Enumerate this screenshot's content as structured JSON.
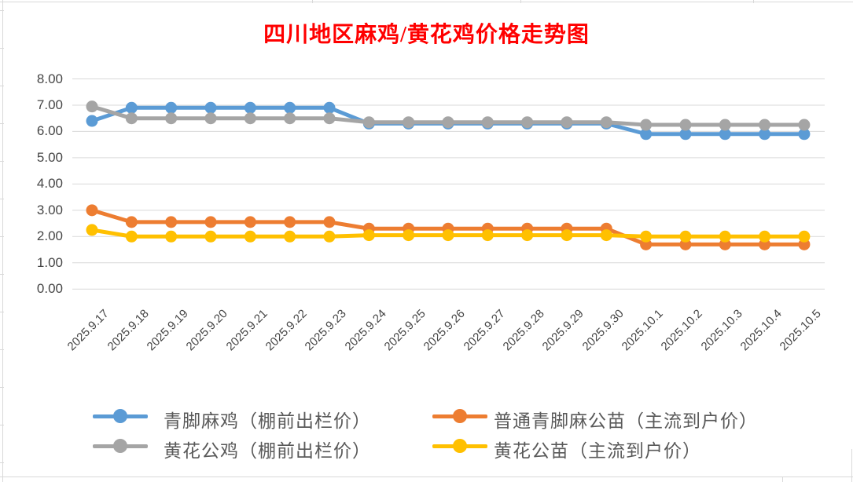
{
  "title": {
    "text": "四川地区麻鸡/黄花鸡价格走势图",
    "color": "#FF0000"
  },
  "chart_data": {
    "type": "line",
    "marker": "circle",
    "grid": true,
    "legend_position": "bottom",
    "ylim": [
      0,
      8
    ],
    "ytick_step": 1,
    "ytick_labels": [
      "0.00",
      "1.00",
      "2.00",
      "3.00",
      "4.00",
      "5.00",
      "6.00",
      "7.00",
      "8.00"
    ],
    "categories": [
      "2025.9.17",
      "2025.9.18",
      "2025.9.19",
      "2025.9.20",
      "2025.9.21",
      "2025.9.22",
      "2025.9.23",
      "2025.9.24",
      "2025.9.25",
      "2025.9.26",
      "2025.9.27",
      "2025.9.28",
      "2025.9.29",
      "2025.9.30",
      "2025.10.1",
      "2025.10.2",
      "2025.10.3",
      "2025.10.4",
      "2025.10.5"
    ],
    "series": [
      {
        "name": "青脚麻鸡（棚前出栏价）",
        "color": "#5B9BD5",
        "values": [
          6.4,
          6.9,
          6.9,
          6.9,
          6.9,
          6.9,
          6.9,
          6.3,
          6.3,
          6.3,
          6.3,
          6.3,
          6.3,
          6.3,
          5.9,
          5.9,
          5.9,
          5.9,
          5.9
        ]
      },
      {
        "name": "普通青脚麻公苗（主流到户价）",
        "color": "#ED7D31",
        "values": [
          3.0,
          2.55,
          2.55,
          2.55,
          2.55,
          2.55,
          2.55,
          2.3,
          2.3,
          2.3,
          2.3,
          2.3,
          2.3,
          2.3,
          1.7,
          1.7,
          1.7,
          1.7,
          1.7
        ]
      },
      {
        "name": "黄花公鸡（棚前出栏价）",
        "color": "#A5A5A5",
        "values": [
          6.95,
          6.5,
          6.5,
          6.5,
          6.5,
          6.5,
          6.5,
          6.35,
          6.35,
          6.35,
          6.35,
          6.35,
          6.35,
          6.35,
          6.25,
          6.25,
          6.25,
          6.25,
          6.25
        ]
      },
      {
        "name": "黄花公苗（主流到户价）",
        "color": "#FFC000",
        "values": [
          2.25,
          2.0,
          2.0,
          2.0,
          2.0,
          2.0,
          2.0,
          2.05,
          2.05,
          2.05,
          2.05,
          2.05,
          2.05,
          2.05,
          2.0,
          2.0,
          2.0,
          2.0,
          2.0
        ]
      }
    ],
    "gridline_color": "#D9D9D9"
  }
}
